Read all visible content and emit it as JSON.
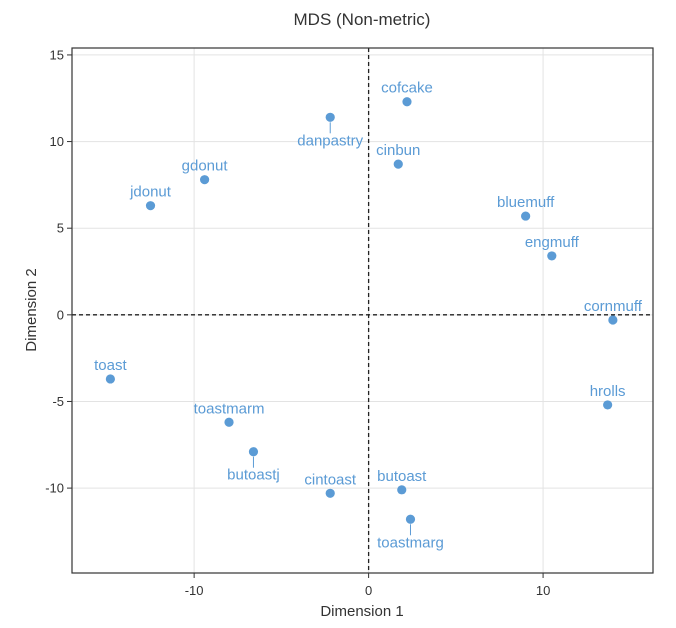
{
  "chart_data": {
    "type": "scatter",
    "title": "MDS (Non-metric)",
    "xlabel": "Dimension 1",
    "ylabel": "Dimension 2",
    "xlim": [
      -17,
      16.3
    ],
    "ylim": [
      -14.9,
      15.4
    ],
    "xticks": [
      -10,
      0,
      10
    ],
    "yticks": [
      -10,
      -5,
      0,
      5,
      10,
      15
    ],
    "grid": true,
    "reference_lines": {
      "x": 0,
      "y": 0,
      "style": "dashed"
    },
    "point_color": "#5b9bd5",
    "points": [
      {
        "label": "cofcake",
        "x": 2.2,
        "y": 12.3,
        "label_pos": "above"
      },
      {
        "label": "danpastry",
        "x": -2.2,
        "y": 11.4,
        "label_pos": "below"
      },
      {
        "label": "cinbun",
        "x": 1.7,
        "y": 8.7,
        "label_pos": "above"
      },
      {
        "label": "gdonut",
        "x": -9.4,
        "y": 7.8,
        "label_pos": "above"
      },
      {
        "label": "jdonut",
        "x": -12.5,
        "y": 6.3,
        "label_pos": "above"
      },
      {
        "label": "bluemuff",
        "x": 9.0,
        "y": 5.7,
        "label_pos": "above"
      },
      {
        "label": "engmuff",
        "x": 10.5,
        "y": 3.4,
        "label_pos": "above"
      },
      {
        "label": "cornmuff",
        "x": 14.0,
        "y": -0.3,
        "label_pos": "above"
      },
      {
        "label": "toast",
        "x": -14.8,
        "y": -3.7,
        "label_pos": "above"
      },
      {
        "label": "hrolls",
        "x": 13.7,
        "y": -5.2,
        "label_pos": "above"
      },
      {
        "label": "toastmarm",
        "x": -8.0,
        "y": -6.2,
        "label_pos": "above"
      },
      {
        "label": "butoastj",
        "x": -6.6,
        "y": -7.9,
        "label_pos": "below"
      },
      {
        "label": "cintoast",
        "x": -2.2,
        "y": -10.3,
        "label_pos": "above"
      },
      {
        "label": "butoast",
        "x": 1.9,
        "y": -10.1,
        "label_pos": "above"
      },
      {
        "label": "toastmarg",
        "x": 2.4,
        "y": -11.8,
        "label_pos": "below"
      }
    ]
  }
}
